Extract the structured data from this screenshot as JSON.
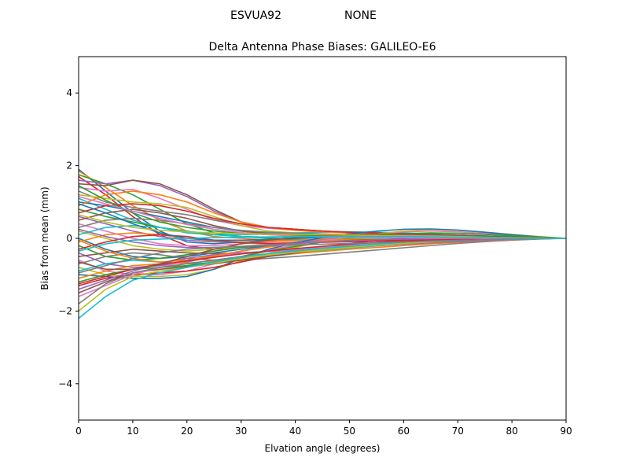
{
  "suptitle": {
    "station": "ESVUA92",
    "radome": "NONE"
  },
  "chart_data": {
    "type": "line",
    "title": "Delta Antenna Phase Biases: GALILEO-E6",
    "xlabel": "Elvation angle (degrees)",
    "ylabel": "Bias from mean (mm)",
    "xlim": [
      0,
      90
    ],
    "ylim": [
      -5,
      5
    ],
    "xticks": [
      0,
      10,
      20,
      30,
      40,
      50,
      60,
      70,
      80,
      90
    ],
    "yticks": [
      -4,
      -2,
      0,
      2,
      4
    ],
    "xtick_labels": [
      "0",
      "10",
      "20",
      "30",
      "40",
      "50",
      "60",
      "70",
      "80",
      "90"
    ],
    "ytick_labels": [
      "−4",
      "−2",
      "0",
      "2",
      "4"
    ],
    "grid": false,
    "x": [
      0,
      5,
      10,
      15,
      20,
      25,
      30,
      35,
      40,
      45,
      50,
      55,
      60,
      65,
      70,
      75,
      80,
      85,
      90
    ],
    "palette": [
      "#1f77b4",
      "#ff7f0e",
      "#2ca02c",
      "#d62728",
      "#9467bd",
      "#8c564b",
      "#e377c2",
      "#7f7f7f",
      "#bcbd22",
      "#17becf"
    ],
    "series": [
      {
        "values": [
          1.9,
          1.3,
          0.7,
          0.2,
          -0.1,
          -0.15,
          -0.1,
          -0.05,
          0,
          0.02,
          0.03,
          0.04,
          0.04,
          0.03,
          0.02,
          0.01,
          0.01,
          0,
          0
        ]
      },
      {
        "values": [
          1.85,
          1.4,
          0.9,
          0.5,
          0.2,
          0.05,
          0,
          -0.05,
          -0.05,
          -0.04,
          -0.03,
          -0.02,
          -0.01,
          0,
          0,
          0,
          0,
          0,
          0
        ]
      },
      {
        "values": [
          1.75,
          1.5,
          1.2,
          0.8,
          0.4,
          0.15,
          0.05,
          0,
          -0.03,
          -0.04,
          -0.04,
          -0.03,
          -0.02,
          -0.01,
          0,
          0,
          0,
          0,
          0
        ]
      },
      {
        "values": [
          1.7,
          1.2,
          0.6,
          0.1,
          -0.2,
          -0.3,
          -0.25,
          -0.2,
          -0.15,
          -0.1,
          -0.08,
          -0.06,
          -0.05,
          -0.04,
          -0.03,
          -0.02,
          -0.01,
          0,
          0
        ]
      },
      {
        "values": [
          1.6,
          1.5,
          1.6,
          1.45,
          1.15,
          0.75,
          0.45,
          0.3,
          0.25,
          0.2,
          0.15,
          0.12,
          0.1,
          0.08,
          0.06,
          0.04,
          0.02,
          0.01,
          0
        ]
      },
      {
        "values": [
          1.5,
          1.45,
          1.6,
          1.5,
          1.2,
          0.8,
          0.45,
          0.3,
          0.25,
          0.2,
          0.17,
          0.15,
          0.12,
          0.1,
          0.08,
          0.05,
          0.03,
          0.01,
          0
        ]
      },
      {
        "values": [
          1.4,
          1.3,
          1.35,
          1.1,
          0.8,
          0.5,
          0.35,
          0.28,
          0.22,
          0.18,
          0.15,
          0.12,
          0.1,
          0.08,
          0.06,
          0.04,
          0.02,
          0.01,
          0
        ]
      },
      {
        "values": [
          1.3,
          1.0,
          0.85,
          0.75,
          0.65,
          0.5,
          0.4,
          0.3,
          0.25,
          0.2,
          0.16,
          0.12,
          0.1,
          0.08,
          0.06,
          0.04,
          0.02,
          0.01,
          0
        ]
      },
      {
        "values": [
          1.2,
          1.1,
          1.0,
          0.95,
          0.85,
          0.6,
          0.35,
          0.2,
          0.15,
          0.12,
          0.1,
          0.08,
          0.06,
          0.05,
          0.04,
          0.03,
          0.02,
          0.01,
          0
        ]
      },
      {
        "values": [
          1.1,
          0.8,
          0.5,
          0.3,
          0.15,
          0.1,
          0.1,
          0.12,
          0.15,
          0.17,
          0.18,
          0.17,
          0.15,
          0.12,
          0.09,
          0.06,
          0.03,
          0.01,
          0
        ]
      },
      {
        "values": [
          1.0,
          0.9,
          0.75,
          0.6,
          0.45,
          0.3,
          0.2,
          0.15,
          0.12,
          0.1,
          0.08,
          0.06,
          0.05,
          0.04,
          0.03,
          0.02,
          0.01,
          0,
          0
        ]
      },
      {
        "values": [
          0.9,
          1.2,
          1.3,
          1.2,
          1.0,
          0.7,
          0.45,
          0.3,
          0.22,
          0.18,
          0.15,
          0.12,
          0.1,
          0.08,
          0.06,
          0.04,
          0.02,
          0.01,
          0
        ]
      },
      {
        "values": [
          0.8,
          0.6,
          0.45,
          0.3,
          0.2,
          0.1,
          0.05,
          0.03,
          0.03,
          0.04,
          0.05,
          0.05,
          0.05,
          0.04,
          0.03,
          0.02,
          0.01,
          0,
          0
        ]
      },
      {
        "values": [
          0.7,
          0.9,
          0.95,
          0.9,
          0.75,
          0.55,
          0.4,
          0.3,
          0.25,
          0.2,
          0.17,
          0.15,
          0.13,
          0.1,
          0.08,
          0.05,
          0.03,
          0.01,
          0
        ]
      },
      {
        "values": [
          0.6,
          0.4,
          0.2,
          0.05,
          -0.05,
          -0.1,
          -0.1,
          -0.08,
          -0.05,
          -0.03,
          0,
          0.02,
          0.03,
          0.03,
          0.02,
          0.02,
          0.01,
          0,
          0
        ]
      },
      {
        "values": [
          0.5,
          0.7,
          0.8,
          0.7,
          0.55,
          0.35,
          0.2,
          0.12,
          0.1,
          0.09,
          0.08,
          0.07,
          0.06,
          0.05,
          0.04,
          0.03,
          0.02,
          0.01,
          0
        ]
      },
      {
        "values": [
          0.4,
          0.2,
          0,
          -0.15,
          -0.2,
          -0.2,
          -0.15,
          -0.1,
          -0.06,
          -0.03,
          0,
          0.02,
          0.03,
          0.03,
          0.02,
          0.02,
          0.01,
          0,
          0
        ]
      },
      {
        "values": [
          0.3,
          0.5,
          0.55,
          0.5,
          0.4,
          0.3,
          0.22,
          0.17,
          0.14,
          0.12,
          0.1,
          0.09,
          0.08,
          0.07,
          0.05,
          0.04,
          0.02,
          0.01,
          0
        ]
      },
      {
        "values": [
          0.2,
          0,
          -0.2,
          -0.3,
          -0.35,
          -0.3,
          -0.22,
          -0.15,
          -0.1,
          -0.06,
          -0.03,
          0,
          0.02,
          0.02,
          0.02,
          0.01,
          0.01,
          0,
          0
        ]
      },
      {
        "values": [
          0.1,
          0.3,
          0.35,
          0.3,
          0.2,
          0.1,
          0.05,
          0.03,
          0.03,
          0.04,
          0.05,
          0.06,
          0.06,
          0.05,
          0.04,
          0.03,
          0.02,
          0.01,
          0
        ]
      },
      {
        "values": [
          0,
          -0.3,
          -0.5,
          -0.55,
          -0.5,
          -0.4,
          -0.3,
          -0.2,
          -0.12,
          -0.06,
          -0.01,
          0.03,
          0.05,
          0.05,
          0.04,
          0.03,
          0.02,
          0.01,
          0
        ]
      },
      {
        "values": [
          -0.1,
          0.1,
          0.15,
          0.1,
          0,
          -0.08,
          -0.1,
          -0.08,
          -0.05,
          -0.02,
          0.01,
          0.03,
          0.04,
          0.04,
          0.03,
          0.02,
          0.01,
          0,
          0
        ]
      },
      {
        "values": [
          -0.2,
          -0.5,
          -0.6,
          -0.55,
          -0.45,
          -0.35,
          -0.25,
          -0.18,
          -0.12,
          -0.08,
          -0.05,
          -0.03,
          -0.02,
          -0.01,
          0,
          0,
          0,
          0,
          0
        ]
      },
      {
        "values": [
          -0.3,
          -0.1,
          0.05,
          0.1,
          0.05,
          -0.05,
          -0.12,
          -0.14,
          -0.13,
          -0.11,
          -0.09,
          -0.07,
          -0.05,
          -0.04,
          -0.03,
          -0.02,
          -0.01,
          0,
          0
        ]
      },
      {
        "values": [
          -0.4,
          -0.7,
          -0.8,
          -0.75,
          -0.65,
          -0.5,
          -0.35,
          -0.22,
          -0.12,
          -0.05,
          0.01,
          0.06,
          0.09,
          0.1,
          0.09,
          0.07,
          0.04,
          0.02,
          0
        ]
      },
      {
        "values": [
          -0.5,
          -0.4,
          -0.3,
          -0.35,
          -0.4,
          -0.42,
          -0.4,
          -0.36,
          -0.32,
          -0.28,
          -0.24,
          -0.2,
          -0.16,
          -0.12,
          -0.09,
          -0.06,
          -0.03,
          -0.01,
          0
        ]
      },
      {
        "values": [
          -0.6,
          -0.9,
          -1.0,
          -1.0,
          -0.9,
          -0.7,
          -0.5,
          -0.32,
          -0.18,
          -0.06,
          0.04,
          0.12,
          0.18,
          0.2,
          0.18,
          0.14,
          0.09,
          0.04,
          0
        ]
      },
      {
        "values": [
          -0.7,
          -0.5,
          -0.4,
          -0.45,
          -0.55,
          -0.6,
          -0.6,
          -0.55,
          -0.5,
          -0.44,
          -0.38,
          -0.32,
          -0.26,
          -0.2,
          -0.14,
          -0.09,
          -0.05,
          -0.02,
          0
        ]
      },
      {
        "values": [
          -0.8,
          -1.0,
          -1.05,
          -1.05,
          -1.0,
          -0.85,
          -0.62,
          -0.42,
          -0.25,
          -0.1,
          0.02,
          0.12,
          0.2,
          0.24,
          0.22,
          0.17,
          0.11,
          0.05,
          0
        ]
      },
      {
        "values": [
          -0.9,
          -0.7,
          -0.6,
          -0.65,
          -0.7,
          -0.68,
          -0.6,
          -0.5,
          -0.42,
          -0.34,
          -0.27,
          -0.21,
          -0.16,
          -0.12,
          -0.09,
          -0.06,
          -0.03,
          -0.01,
          0
        ]
      },
      {
        "values": [
          -1.0,
          -1.05,
          -1.1,
          -1.1,
          -1.05,
          -0.85,
          -0.55,
          -0.3,
          -0.12,
          0.02,
          0.12,
          0.2,
          0.25,
          0.26,
          0.23,
          0.17,
          0.1,
          0.04,
          0
        ]
      },
      {
        "values": [
          -1.1,
          -0.9,
          -0.75,
          -0.7,
          -0.68,
          -0.62,
          -0.55,
          -0.48,
          -0.42,
          -0.36,
          -0.3,
          -0.25,
          -0.2,
          -0.15,
          -0.11,
          -0.07,
          -0.04,
          -0.01,
          0
        ]
      },
      {
        "values": [
          -1.2,
          -1.0,
          -0.85,
          -0.8,
          -0.75,
          -0.65,
          -0.5,
          -0.35,
          -0.22,
          -0.1,
          0.0,
          0.08,
          0.13,
          0.15,
          0.14,
          0.11,
          0.07,
          0.03,
          0
        ]
      },
      {
        "values": [
          -1.3,
          -1.1,
          -1.0,
          -0.95,
          -0.9,
          -0.8,
          -0.65,
          -0.5,
          -0.36,
          -0.24,
          -0.14,
          -0.06,
          0,
          0.03,
          0.04,
          0.03,
          0.02,
          0.01,
          0
        ]
      },
      {
        "values": [
          -1.4,
          -1.15,
          -0.9,
          -0.7,
          -0.55,
          -0.45,
          -0.4,
          -0.36,
          -0.32,
          -0.28,
          -0.24,
          -0.2,
          -0.16,
          -0.12,
          -0.09,
          -0.06,
          -0.03,
          -0.01,
          0
        ]
      },
      {
        "values": [
          -1.5,
          -1.2,
          -0.95,
          -0.85,
          -0.78,
          -0.7,
          -0.6,
          -0.5,
          -0.4,
          -0.3,
          -0.2,
          -0.12,
          -0.06,
          -0.02,
          0,
          0.01,
          0.01,
          0,
          0
        ]
      },
      {
        "values": [
          -1.6,
          -1.3,
          -1.0,
          -0.8,
          -0.62,
          -0.5,
          -0.42,
          -0.36,
          -0.3,
          -0.24,
          -0.18,
          -0.13,
          -0.09,
          -0.06,
          -0.04,
          -0.02,
          -0.01,
          0,
          0
        ]
      },
      {
        "values": [
          -1.8,
          -1.25,
          -0.95,
          -0.8,
          -0.7,
          -0.6,
          -0.5,
          -0.42,
          -0.35,
          -0.28,
          -0.22,
          -0.16,
          -0.11,
          -0.07,
          -0.04,
          -0.02,
          -0.01,
          0,
          0
        ]
      },
      {
        "values": [
          -2.0,
          -1.4,
          -1.05,
          -0.9,
          -0.8,
          -0.68,
          -0.56,
          -0.46,
          -0.38,
          -0.31,
          -0.25,
          -0.19,
          -0.14,
          -0.1,
          -0.06,
          -0.04,
          -0.02,
          -0.01,
          0
        ]
      },
      {
        "values": [
          -2.2,
          -1.6,
          -1.15,
          -0.95,
          -0.8,
          -0.65,
          -0.52,
          -0.42,
          -0.34,
          -0.27,
          -0.21,
          -0.16,
          -0.11,
          -0.07,
          -0.04,
          -0.02,
          -0.01,
          0,
          0
        ]
      },
      {
        "values": [
          0.95,
          0.7,
          0.4,
          0.15,
          0.0,
          -0.05,
          -0.05,
          -0.03,
          0,
          0.03,
          0.05,
          0.06,
          0.06,
          0.05,
          0.04,
          0.03,
          0.02,
          0.01,
          0
        ]
      },
      {
        "values": [
          -0.05,
          -0.35,
          -0.55,
          -0.65,
          -0.6,
          -0.48,
          -0.35,
          -0.24,
          -0.15,
          -0.08,
          -0.02,
          0.02,
          0.04,
          0.05,
          0.04,
          0.03,
          0.02,
          0.01,
          0
        ]
      },
      {
        "values": [
          1.45,
          1.05,
          0.7,
          0.45,
          0.3,
          0.2,
          0.14,
          0.1,
          0.08,
          0.07,
          0.06,
          0.05,
          0.04,
          0.03,
          0.02,
          0.02,
          0.01,
          0,
          0
        ]
      },
      {
        "values": [
          -1.25,
          -1.05,
          -0.85,
          -0.72,
          -0.62,
          -0.52,
          -0.43,
          -0.35,
          -0.28,
          -0.22,
          -0.16,
          -0.11,
          -0.07,
          -0.04,
          -0.02,
          -0.01,
          0,
          0,
          0
        ]
      },
      {
        "values": [
          0.25,
          0.05,
          -0.1,
          -0.2,
          -0.25,
          -0.25,
          -0.22,
          -0.18,
          -0.14,
          -0.1,
          -0.07,
          -0.04,
          -0.02,
          -0.01,
          0,
          0,
          0,
          0,
          0
        ]
      },
      {
        "values": [
          -0.65,
          -0.85,
          -0.85,
          -0.7,
          -0.5,
          -0.3,
          -0.15,
          -0.05,
          0.02,
          0.07,
          0.1,
          0.12,
          0.12,
          0.11,
          0.09,
          0.06,
          0.04,
          0.02,
          0
        ]
      },
      {
        "values": [
          1.15,
          0.95,
          0.75,
          0.55,
          0.38,
          0.25,
          0.16,
          0.1,
          0.06,
          0.04,
          0.03,
          0.02,
          0.02,
          0.01,
          0.01,
          0,
          0,
          0,
          0
        ]
      },
      {
        "values": [
          -0.95,
          -0.75,
          -0.55,
          -0.4,
          -0.3,
          -0.25,
          -0.22,
          -0.2,
          -0.18,
          -0.16,
          -0.14,
          -0.12,
          -0.1,
          -0.08,
          -0.06,
          -0.04,
          -0.02,
          -0.01,
          0
        ]
      },
      {
        "values": [
          0.65,
          0.45,
          0.3,
          0.22,
          0.18,
          0.15,
          0.13,
          0.12,
          0.11,
          0.1,
          0.09,
          0.08,
          0.07,
          0.06,
          0.05,
          0.03,
          0.02,
          0.01,
          0
        ]
      },
      {
        "values": [
          -0.35,
          -0.15,
          -0.05,
          -0.02,
          0,
          0.02,
          0.03,
          0.04,
          0.05,
          0.05,
          0.05,
          0.05,
          0.05,
          0.04,
          0.03,
          0.02,
          0.01,
          0,
          0
        ]
      }
    ]
  }
}
